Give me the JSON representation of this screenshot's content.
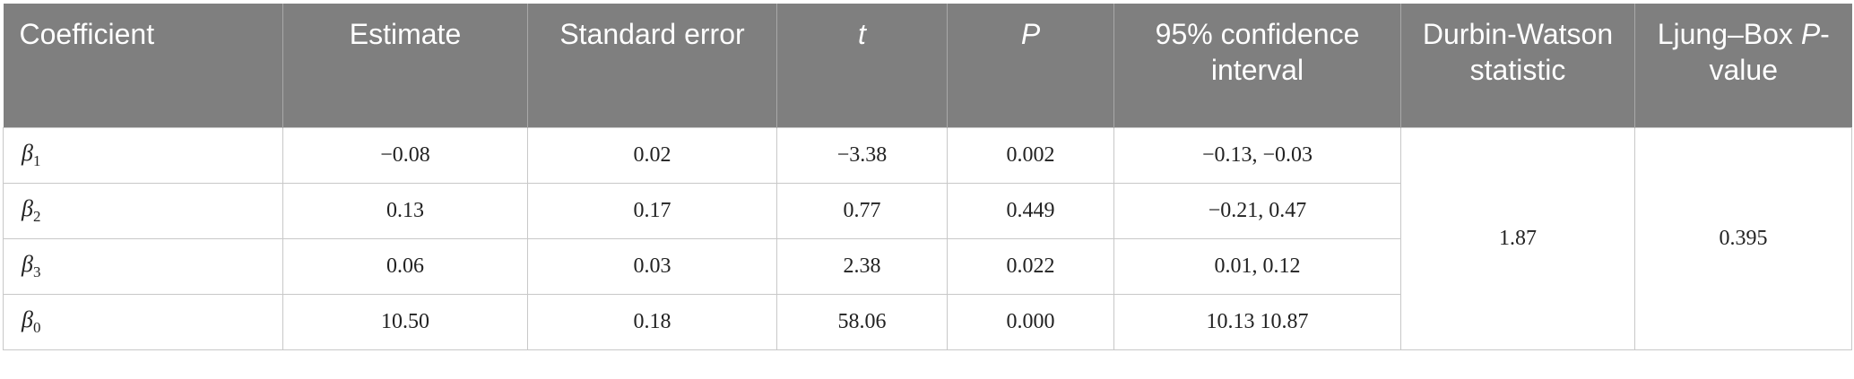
{
  "table": {
    "columns": [
      {
        "parts": [
          {
            "text": "Coefficient",
            "italic": false
          }
        ]
      },
      {
        "parts": [
          {
            "text": "Estimate",
            "italic": false
          }
        ]
      },
      {
        "parts": [
          {
            "text": "Standard error",
            "italic": false
          }
        ]
      },
      {
        "parts": [
          {
            "text": "t",
            "italic": true
          }
        ]
      },
      {
        "parts": [
          {
            "text": "P",
            "italic": true
          }
        ]
      },
      {
        "parts": [
          {
            "text": "95% confidence interval",
            "italic": false
          }
        ]
      },
      {
        "parts": [
          {
            "text": "Durbin-Watson statistic",
            "italic": false
          }
        ]
      },
      {
        "parts": [
          {
            "text": "Ljung–Box ",
            "italic": false
          },
          {
            "text": "P",
            "italic": true
          },
          {
            "text": "-value",
            "italic": false
          }
        ]
      }
    ],
    "rows": [
      {
        "coefficient": {
          "symbol": "β",
          "subscript": "1"
        },
        "cells": [
          "−0.08",
          "0.02",
          "−3.38",
          "0.002",
          "−0.13, −0.03"
        ]
      },
      {
        "coefficient": {
          "symbol": "β",
          "subscript": "2"
        },
        "cells": [
          "0.13",
          "0.17",
          "0.77",
          "0.449",
          "−0.21, 0.47"
        ]
      },
      {
        "coefficient": {
          "symbol": "β",
          "subscript": "3"
        },
        "cells": [
          "0.06",
          "0.03",
          "2.38",
          "0.022",
          "0.01, 0.12"
        ]
      },
      {
        "coefficient": {
          "symbol": "β",
          "subscript": "0"
        },
        "cells": [
          "10.50",
          "0.18",
          "58.06",
          "0.000",
          "10.13 10.87"
        ]
      }
    ],
    "durbin_watson": "1.87",
    "ljung_box_p": "0.395"
  }
}
